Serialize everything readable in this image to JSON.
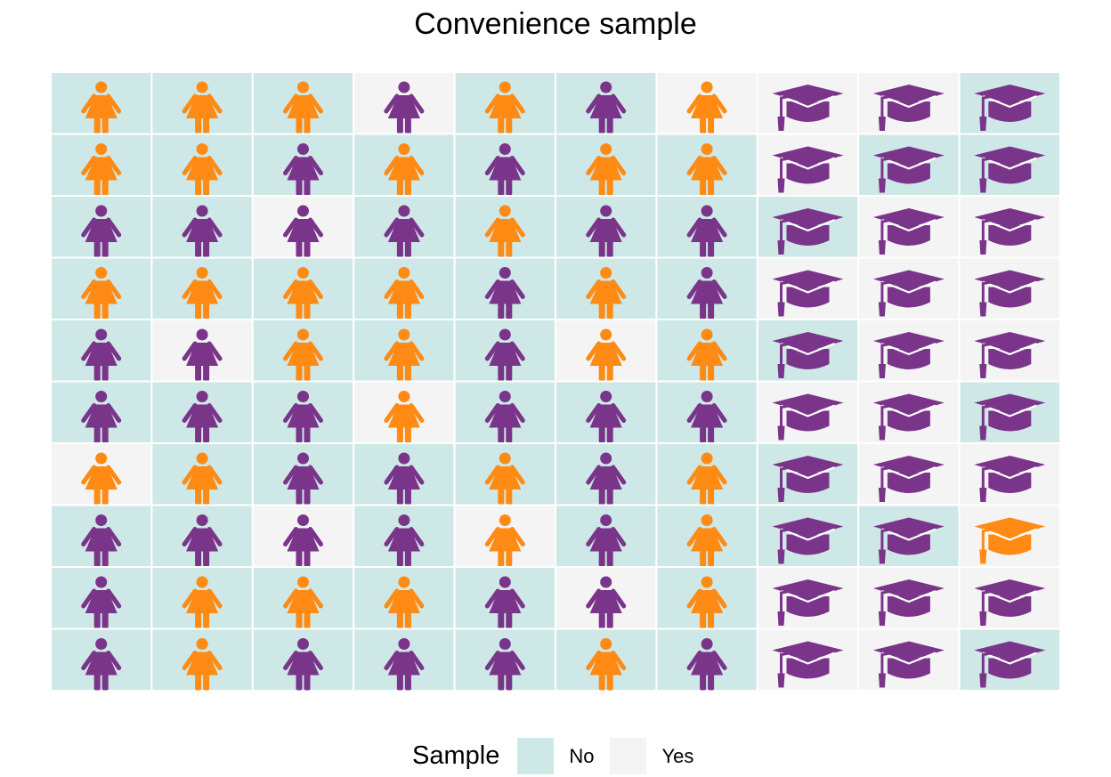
{
  "chart_data": {
    "type": "table",
    "title": "Convenience sample",
    "legend": {
      "title": "Sample",
      "position": "bottom",
      "entries": [
        {
          "label": "No",
          "color": "#cde8e6"
        },
        {
          "label": "Yes",
          "color": "#f4f4f4"
        }
      ]
    },
    "icon_colors": {
      "orange": "#ff8a14",
      "purple": "#7a348a"
    },
    "rows": [
      {
        "icons": [
          "person",
          "person",
          "person",
          "person",
          "person",
          "person",
          "person",
          "cap",
          "cap",
          "cap"
        ],
        "color": [
          "orange",
          "orange",
          "orange",
          "purple",
          "orange",
          "purple",
          "orange",
          "purple",
          "purple",
          "purple"
        ],
        "sample": [
          "No",
          "No",
          "No",
          "Yes",
          "No",
          "No",
          "Yes",
          "Yes",
          "Yes",
          "No"
        ]
      },
      {
        "icons": [
          "person",
          "person",
          "person",
          "person",
          "person",
          "person",
          "person",
          "cap",
          "cap",
          "cap"
        ],
        "color": [
          "orange",
          "orange",
          "purple",
          "orange",
          "purple",
          "orange",
          "orange",
          "purple",
          "purple",
          "purple"
        ],
        "sample": [
          "No",
          "No",
          "No",
          "No",
          "No",
          "No",
          "No",
          "Yes",
          "No",
          "No"
        ]
      },
      {
        "icons": [
          "person",
          "person",
          "person",
          "person",
          "person",
          "person",
          "person",
          "cap",
          "cap",
          "cap"
        ],
        "color": [
          "purple",
          "purple",
          "purple",
          "purple",
          "orange",
          "purple",
          "purple",
          "purple",
          "purple",
          "purple"
        ],
        "sample": [
          "No",
          "No",
          "Yes",
          "No",
          "No",
          "No",
          "No",
          "No",
          "Yes",
          "Yes"
        ]
      },
      {
        "icons": [
          "person",
          "person",
          "person",
          "person",
          "person",
          "person",
          "person",
          "cap",
          "cap",
          "cap"
        ],
        "color": [
          "orange",
          "orange",
          "orange",
          "orange",
          "purple",
          "orange",
          "purple",
          "purple",
          "purple",
          "purple"
        ],
        "sample": [
          "No",
          "No",
          "No",
          "No",
          "No",
          "No",
          "No",
          "Yes",
          "Yes",
          "Yes"
        ]
      },
      {
        "icons": [
          "person",
          "person",
          "person",
          "person",
          "person",
          "person",
          "person",
          "cap",
          "cap",
          "cap"
        ],
        "color": [
          "purple",
          "purple",
          "orange",
          "orange",
          "purple",
          "orange",
          "orange",
          "purple",
          "purple",
          "purple"
        ],
        "sample": [
          "No",
          "Yes",
          "No",
          "No",
          "No",
          "Yes",
          "No",
          "No",
          "Yes",
          "Yes"
        ]
      },
      {
        "icons": [
          "person",
          "person",
          "person",
          "person",
          "person",
          "person",
          "person",
          "cap",
          "cap",
          "cap"
        ],
        "color": [
          "purple",
          "purple",
          "purple",
          "orange",
          "purple",
          "purple",
          "purple",
          "purple",
          "purple",
          "purple"
        ],
        "sample": [
          "No",
          "No",
          "No",
          "Yes",
          "No",
          "No",
          "No",
          "Yes",
          "Yes",
          "No"
        ]
      },
      {
        "icons": [
          "person",
          "person",
          "person",
          "person",
          "person",
          "person",
          "person",
          "cap",
          "cap",
          "cap"
        ],
        "color": [
          "orange",
          "orange",
          "purple",
          "purple",
          "orange",
          "purple",
          "orange",
          "purple",
          "purple",
          "purple"
        ],
        "sample": [
          "Yes",
          "No",
          "No",
          "No",
          "No",
          "No",
          "No",
          "No",
          "Yes",
          "Yes"
        ]
      },
      {
        "icons": [
          "person",
          "person",
          "person",
          "person",
          "person",
          "person",
          "person",
          "cap",
          "cap",
          "cap"
        ],
        "color": [
          "purple",
          "purple",
          "purple",
          "purple",
          "orange",
          "purple",
          "orange",
          "purple",
          "purple",
          "orange"
        ],
        "sample": [
          "No",
          "No",
          "Yes",
          "No",
          "Yes",
          "No",
          "No",
          "No",
          "No",
          "Yes"
        ]
      },
      {
        "icons": [
          "person",
          "person",
          "person",
          "person",
          "person",
          "person",
          "person",
          "cap",
          "cap",
          "cap"
        ],
        "color": [
          "purple",
          "orange",
          "orange",
          "orange",
          "purple",
          "purple",
          "orange",
          "purple",
          "purple",
          "purple"
        ],
        "sample": [
          "No",
          "No",
          "No",
          "No",
          "No",
          "Yes",
          "No",
          "Yes",
          "Yes",
          "Yes"
        ]
      },
      {
        "icons": [
          "person",
          "person",
          "person",
          "person",
          "person",
          "person",
          "person",
          "cap",
          "cap",
          "cap"
        ],
        "color": [
          "purple",
          "orange",
          "purple",
          "purple",
          "purple",
          "orange",
          "purple",
          "purple",
          "purple",
          "purple"
        ],
        "sample": [
          "No",
          "No",
          "No",
          "No",
          "No",
          "No",
          "No",
          "Yes",
          "Yes",
          "No"
        ]
      }
    ]
  }
}
